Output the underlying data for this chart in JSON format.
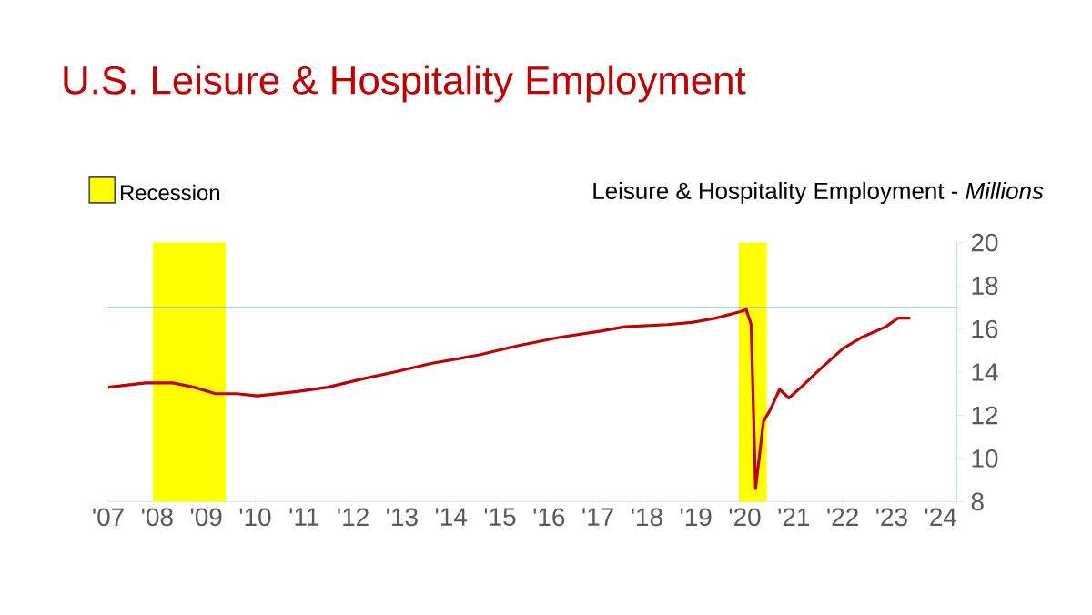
{
  "chart_data": {
    "type": "line",
    "title": "U.S. Leisure & Hospitality Employment",
    "subtitle": "Leisure & Hospitality Employment - *Millions*",
    "x": [
      2007.0,
      2007.76,
      2008.32,
      2008.75,
      2009.19,
      2009.62,
      2010.05,
      2010.86,
      2011.48,
      2012.22,
      2012.84,
      2013.59,
      2014.58,
      2015.32,
      2016.19,
      2017.06,
      2017.55,
      2018.42,
      2018.91,
      2019.41,
      2019.91,
      2020.03,
      2020.13,
      2020.22,
      2020.38,
      2020.53,
      2020.71,
      2020.9,
      2021.15,
      2021.52,
      2022.01,
      2022.38,
      2022.88,
      2023.13,
      2023.38
    ],
    "series": [
      {
        "color": "#c00000",
        "values": [
          13.3,
          13.5,
          13.5,
          13.3,
          13.0,
          13.0,
          12.9,
          13.1,
          13.3,
          13.7,
          14.0,
          14.4,
          14.8,
          15.2,
          15.6,
          15.9,
          16.1,
          16.2,
          16.3,
          16.5,
          16.8,
          16.9,
          16.2,
          8.6,
          11.7,
          12.3,
          13.2,
          12.8,
          13.3,
          14.1,
          15.1,
          15.6,
          16.1,
          16.5,
          16.5
        ]
      }
    ],
    "xlim": [
      2007,
      2024.33
    ],
    "xticks": [
      {
        "value": 2007,
        "label": "'07"
      },
      {
        "value": 2008,
        "label": "'08"
      },
      {
        "value": 2009,
        "label": "'09"
      },
      {
        "value": 2010,
        "label": "'10"
      },
      {
        "value": 2011,
        "label": "'11"
      },
      {
        "value": 2012,
        "label": "'12"
      },
      {
        "value": 2013,
        "label": "'13"
      },
      {
        "value": 2014,
        "label": "'14"
      },
      {
        "value": 2015,
        "label": "'15"
      },
      {
        "value": 2016,
        "label": "'16"
      },
      {
        "value": 2017,
        "label": "'17"
      },
      {
        "value": 2018,
        "label": "'18"
      },
      {
        "value": 2019,
        "label": "'19"
      },
      {
        "value": 2020,
        "label": "'20"
      },
      {
        "value": 2021,
        "label": "'21"
      },
      {
        "value": 2022,
        "label": "'22"
      },
      {
        "value": 2023,
        "label": "'23"
      },
      {
        "value": 2024,
        "label": "'24"
      }
    ],
    "ylim": [
      8,
      20
    ],
    "yticks": [
      8,
      10,
      12,
      14,
      16,
      18,
      20
    ],
    "bands": [
      {
        "axis": "x",
        "from": 2007.91,
        "to": 2009.4,
        "label": "Recession",
        "color": "#ffff00"
      },
      {
        "axis": "x",
        "from": 2019.88,
        "to": 2020.45,
        "color": "#ffff00"
      }
    ],
    "ref_lines": [
      {
        "axis": "y",
        "value": 17,
        "color": "#7f9fb0"
      }
    ],
    "legend": "top left",
    "grid": false,
    "marker": "none",
    "line_style": "solid"
  }
}
